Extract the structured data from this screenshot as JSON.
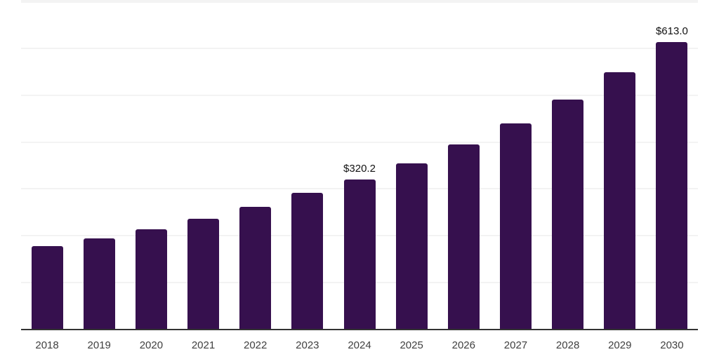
{
  "chart_data": {
    "type": "bar",
    "title": "",
    "xlabel": "",
    "ylabel": "",
    "categories": [
      "2018",
      "2019",
      "2020",
      "2021",
      "2022",
      "2023",
      "2024",
      "2025",
      "2026",
      "2027",
      "2028",
      "2029",
      "2030"
    ],
    "values": [
      178,
      194,
      214,
      237,
      262,
      291,
      320.2,
      355,
      395,
      440,
      491,
      549,
      613
    ],
    "data_labels": [
      "",
      "",
      "",
      "",
      "",
      "",
      "$320.2",
      "",
      "",
      "",
      "",
      "",
      "$613.0"
    ],
    "ylim": [
      0,
      700
    ],
    "grid_step": 100,
    "grid_on": true,
    "legend": "none",
    "colors": {
      "bar": "#36104e",
      "axis": "#333333",
      "gridline": "#f3f3f3",
      "tick_label": "#404040",
      "data_label": "#111111",
      "background": "#ffffff"
    }
  }
}
